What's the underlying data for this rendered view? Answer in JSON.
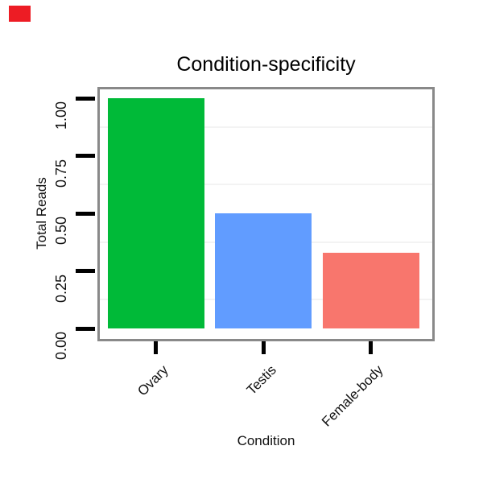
{
  "page": {
    "background": "#FFFFFF"
  },
  "overlay_marker": {
    "description": "small solid red rectangle in top-left corner",
    "color": "#ED1C24"
  },
  "chart_data": {
    "type": "bar",
    "title": "Condition-specificity",
    "xlabel": "Condition",
    "ylabel": "Total Reads",
    "categories": [
      "Ovary",
      "Testis",
      "Female-body"
    ],
    "values": [
      1.0,
      0.5,
      0.33
    ],
    "bar_colors": [
      "#00BA38",
      "#619CFF",
      "#F8766D"
    ],
    "yticks": [
      {
        "value": 1.0,
        "label": "1.00"
      },
      {
        "value": 0.75,
        "label": "0.75"
      },
      {
        "value": 0.5,
        "label": "0.50"
      },
      {
        "value": 0.25,
        "label": "0.25"
      },
      {
        "value": 0.0,
        "label": "0.00"
      }
    ],
    "minor_gridlines": [
      0.875,
      0.625,
      0.375,
      0.125
    ],
    "ylim": [
      0,
      1.05
    ],
    "grid": "faint horizontal minor gridlines only",
    "legend": "none",
    "panel_border_color": "#898989",
    "tick_color": "#000000",
    "grid_color": "#F3F3F3",
    "text_color": "#000000"
  }
}
